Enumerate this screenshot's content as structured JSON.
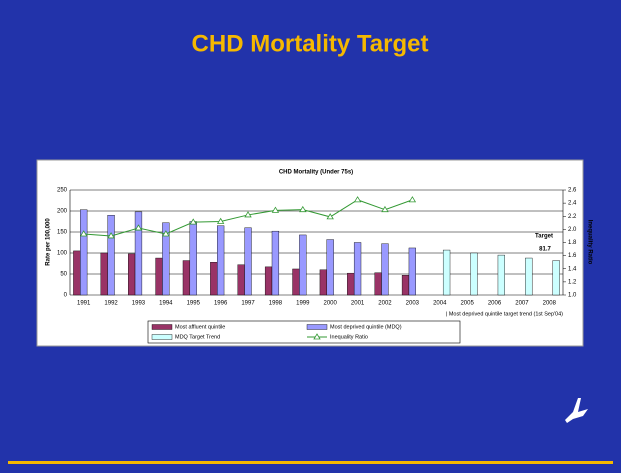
{
  "slide_title": "CHD Mortality Target",
  "chart_data": {
    "type": "bar",
    "title": "CHD Mortality (Under 75s)",
    "categories": [
      "1991",
      "1992",
      "1993",
      "1994",
      "1995",
      "1996",
      "1997",
      "1998",
      "1999",
      "2000",
      "2001",
      "2002",
      "2003",
      "2004",
      "2005",
      "2006",
      "2007",
      "2008"
    ],
    "series": [
      {
        "name": "Most affluent quintile",
        "color": "#993366",
        "values": [
          105,
          100,
          98,
          88,
          82,
          78,
          72,
          67,
          62,
          60,
          52,
          53,
          47,
          null,
          null,
          null,
          null,
          null
        ]
      },
      {
        "name": "Most deprived quintile (MDQ)",
        "color": "#9999ff",
        "values": [
          203,
          190,
          198,
          172,
          175,
          165,
          160,
          152,
          143,
          132,
          125,
          122,
          112,
          null,
          null,
          null,
          null,
          null
        ]
      },
      {
        "name": "MDQ Target Trend",
        "color": "#ccffff",
        "values": [
          null,
          null,
          null,
          null,
          null,
          null,
          null,
          null,
          null,
          null,
          null,
          null,
          null,
          107,
          100,
          95,
          88,
          82
        ]
      },
      {
        "name": "Inequality Ratio",
        "color": "#339933",
        "type": "line",
        "axis": "y2",
        "values": [
          1.93,
          1.9,
          2.02,
          1.93,
          2.11,
          2.12,
          2.22,
          2.29,
          2.3,
          2.19,
          2.45,
          2.3,
          2.45,
          null,
          null,
          null,
          null,
          null
        ]
      }
    ],
    "ylim": [
      0,
      250
    ],
    "yticks": [
      0,
      50,
      100,
      150,
      200,
      250
    ],
    "y2lim": [
      1.0,
      2.6
    ],
    "y2ticks": [
      {
        "value": 1.0,
        "label": "1.0"
      },
      1.2,
      1.4,
      1.6,
      1.8,
      {
        "value": 2.0,
        "label": "2.0"
      },
      2.2,
      2.4,
      2.6
    ],
    "ylabel": "Rate per 100,000",
    "y2label": "Inequality Ratio",
    "annotations": [
      "Target",
      "81.7",
      "| Most deprived quintile target trend (1st Sep'04)"
    ],
    "grid": true,
    "legend": "bottom"
  }
}
